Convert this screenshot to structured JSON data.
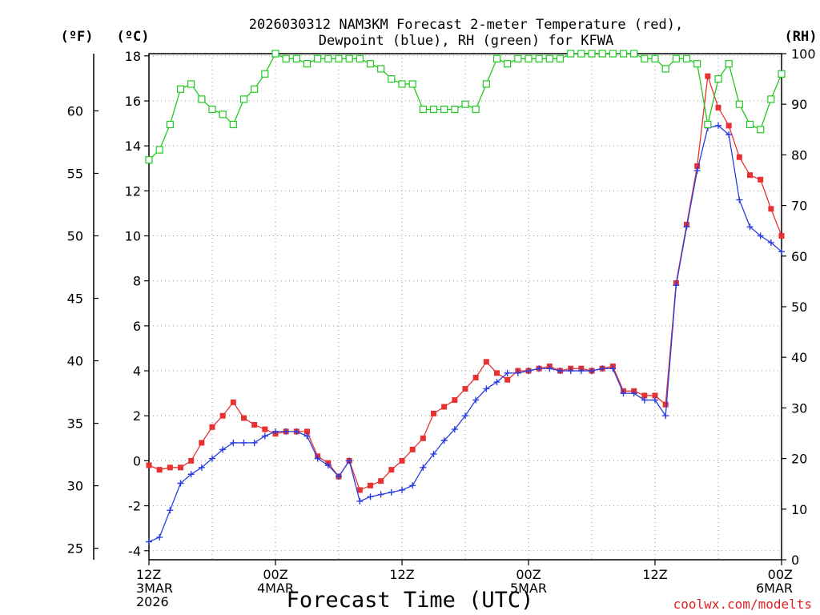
{
  "chart_data": {
    "type": "line",
    "title_line1": "2026030312 NAM3KM Forecast 2-meter Temperature (red),",
    "title_line2": "Dewpoint (blue), RH (green) for KFWA",
    "left_unit_f": "(ºF)",
    "left_unit_c": "(ºC)",
    "right_unit": "(RH)",
    "xlabel": "Forecast Time (UTC)",
    "credit": "coolwx.com/modelts",
    "x_hours_range": [
      0,
      60
    ],
    "c_range": [
      -4.4,
      18.1
    ],
    "rh_range": [
      0,
      100
    ],
    "c_ticks": [
      "-4",
      "-2",
      "0",
      "2",
      "4",
      "6",
      "8",
      "10",
      "12",
      "14",
      "16",
      "18"
    ],
    "f_ticks": [
      "25",
      "30",
      "35",
      "40",
      "45",
      "50",
      "55",
      "60"
    ],
    "rh_ticks": [
      "0",
      "10",
      "20",
      "30",
      "40",
      "50",
      "60",
      "70",
      "80",
      "90",
      "100"
    ],
    "x_ticks": [
      {
        "hour": 0,
        "line1": "12Z",
        "line2": "3MAR",
        "line3": "2026"
      },
      {
        "hour": 12,
        "line1": "00Z",
        "line2": "4MAR",
        "line3": ""
      },
      {
        "hour": 24,
        "line1": "12Z",
        "line2": "",
        "line3": ""
      },
      {
        "hour": 36,
        "line1": "00Z",
        "line2": "5MAR",
        "line3": ""
      },
      {
        "hour": 48,
        "line1": "12Z",
        "line2": "",
        "line3": ""
      },
      {
        "hour": 60,
        "line1": "00Z",
        "line2": "6MAR",
        "line3": ""
      }
    ],
    "series": [
      {
        "name": "Temperature (°C)",
        "color": "#e83232",
        "axis": "c",
        "marker": "filled-square",
        "values": [
          -0.2,
          -0.4,
          -0.3,
          -0.3,
          0.0,
          0.8,
          1.5,
          2.0,
          2.6,
          1.9,
          1.6,
          1.4,
          1.2,
          1.3,
          1.3,
          1.3,
          0.2,
          -0.1,
          -0.7,
          0.0,
          -1.3,
          -1.1,
          -0.9,
          -0.4,
          0.0,
          0.5,
          1.0,
          2.1,
          2.4,
          2.7,
          3.2,
          3.7,
          4.4,
          3.9,
          3.6,
          4.0,
          4.0,
          4.1,
          4.2,
          4.0,
          4.1,
          4.1,
          4.0,
          4.1,
          4.2,
          3.1,
          3.1,
          2.9,
          2.9,
          2.5,
          7.9,
          10.5,
          13.1,
          17.1,
          15.7,
          14.9,
          13.5,
          12.7,
          12.5,
          11.2,
          10.0
        ]
      },
      {
        "name": "Dewpoint (°C)",
        "color": "#2a3ee0",
        "axis": "c",
        "marker": "plus",
        "values": [
          -3.6,
          -3.4,
          -2.2,
          -1.0,
          -0.6,
          -0.3,
          0.1,
          0.5,
          0.8,
          0.8,
          0.8,
          1.1,
          1.3,
          1.3,
          1.3,
          1.1,
          0.1,
          -0.2,
          -0.7,
          0.0,
          -1.8,
          -1.6,
          -1.5,
          -1.4,
          -1.3,
          -1.1,
          -0.3,
          0.3,
          0.9,
          1.4,
          2.0,
          2.7,
          3.2,
          3.5,
          3.9,
          3.9,
          4.0,
          4.1,
          4.1,
          4.0,
          4.0,
          4.0,
          4.0,
          4.1,
          4.1,
          3.0,
          3.0,
          2.7,
          2.7,
          2.0,
          7.8,
          10.4,
          12.9,
          14.8,
          14.9,
          14.5,
          11.6,
          10.4,
          10.0,
          9.7,
          9.3
        ]
      },
      {
        "name": "RH (%)",
        "color": "#22c922",
        "axis": "rh",
        "marker": "open-square",
        "values": [
          79,
          81,
          86,
          93,
          94,
          91,
          89,
          88,
          86,
          91,
          93,
          96,
          100,
          99,
          99,
          98,
          99,
          99,
          99,
          99,
          99,
          98,
          97,
          95,
          94,
          94,
          89,
          89,
          89,
          89,
          90,
          89,
          94,
          99,
          98,
          99,
          99,
          99,
          99,
          99,
          100,
          100,
          100,
          100,
          100,
          100,
          100,
          99,
          99,
          97,
          99,
          99,
          98,
          86,
          95,
          98,
          90,
          86,
          85,
          91,
          96
        ]
      }
    ]
  }
}
